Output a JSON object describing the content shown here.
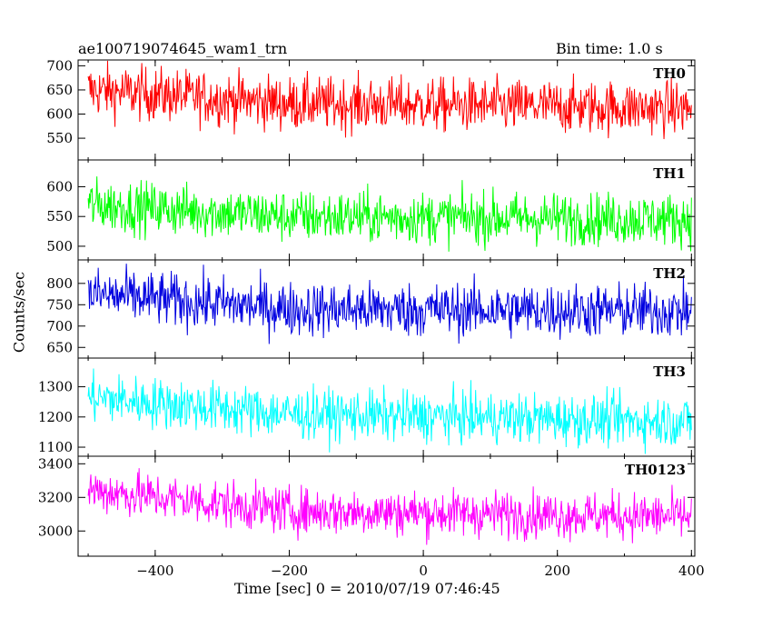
{
  "header": {
    "title": "ae100719074645_wam1_trn",
    "bin_time": "Bin time: 1.0 s"
  },
  "chart_data": {
    "type": "line",
    "xlabel": "Time [sec] 0 = 2010/07/19 07:46:45",
    "ylabel": "Counts/sec",
    "xlim": [
      -515,
      405
    ],
    "x_ticks": [
      -400,
      -200,
      0,
      200,
      400
    ],
    "x_tick_labels": [
      "−400",
      "−200",
      "0",
      "200",
      "400"
    ],
    "x_range_data": [
      -500,
      400
    ],
    "grid": false,
    "panels": [
      {
        "name": "TH0",
        "color": "#ff0000",
        "ylim": [
          505,
          712
        ],
        "y_ticks": [
          550,
          600,
          650,
          700
        ],
        "y_tick_labels": [
          "550",
          "600",
          "650",
          "700"
        ],
        "level": [
          {
            "x": -500,
            "y": 650
          },
          {
            "x": -200,
            "y": 622
          },
          {
            "x": 400,
            "y": 612
          }
        ],
        "noise_sd": 28
      },
      {
        "name": "TH1",
        "color": "#00ff00",
        "ylim": [
          477,
          645
        ],
        "y_ticks": [
          500,
          550,
          600
        ],
        "y_tick_labels": [
          "500",
          "550",
          "600"
        ],
        "level": [
          {
            "x": -500,
            "y": 570
          },
          {
            "x": -200,
            "y": 550
          },
          {
            "x": 400,
            "y": 545
          }
        ],
        "noise_sd": 22
      },
      {
        "name": "TH2",
        "color": "#0000e0",
        "ylim": [
          625,
          855
        ],
        "y_ticks": [
          650,
          700,
          750,
          800
        ],
        "y_tick_labels": [
          "650",
          "700",
          "750",
          "800"
        ],
        "level": [
          {
            "x": -500,
            "y": 775
          },
          {
            "x": -200,
            "y": 740
          },
          {
            "x": 400,
            "y": 735
          }
        ],
        "noise_sd": 32
      },
      {
        "name": "TH3",
        "color": "#00ffff",
        "ylim": [
          1070,
          1395
        ],
        "y_ticks": [
          1100,
          1200,
          1300
        ],
        "y_tick_labels": [
          "1100",
          "1200",
          "1300"
        ],
        "level": [
          {
            "x": -500,
            "y": 1265
          },
          {
            "x": -200,
            "y": 1210
          },
          {
            "x": 400,
            "y": 1185
          }
        ],
        "noise_sd": 42
      },
      {
        "name": "TH0123",
        "color": "#ff00ff",
        "ylim": [
          2850,
          3445
        ],
        "y_ticks": [
          3000,
          3200,
          3400
        ],
        "y_tick_labels": [
          "3000",
          "3200",
          "3400"
        ],
        "level": [
          {
            "x": -500,
            "y": 3245
          },
          {
            "x": -200,
            "y": 3120
          },
          {
            "x": 400,
            "y": 3085
          }
        ],
        "noise_sd": 70
      }
    ]
  }
}
